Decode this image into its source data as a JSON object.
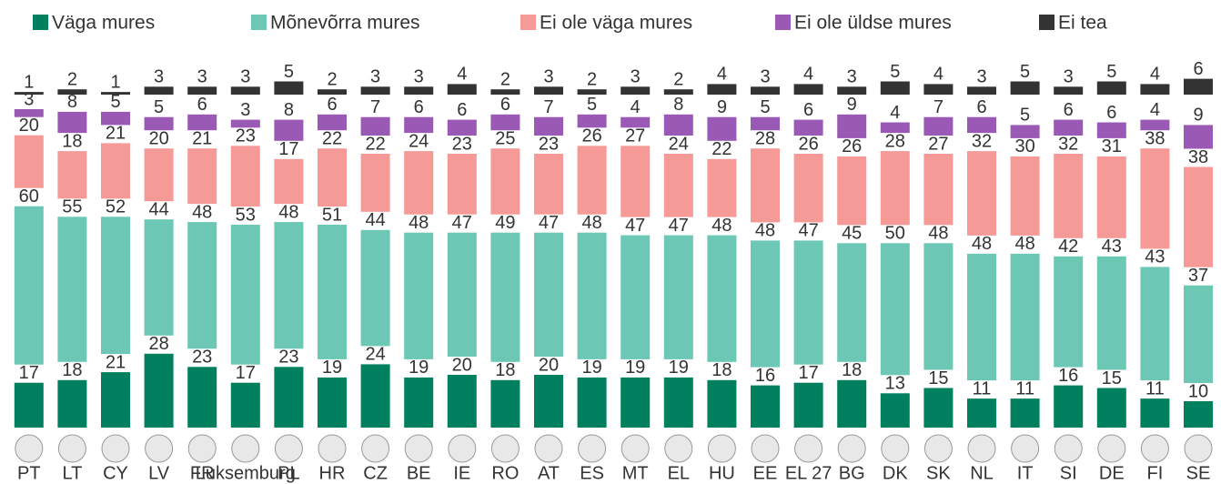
{
  "chart_data": {
    "type": "stacked_bar",
    "categories": [
      "PT",
      "LT",
      "CY",
      "LV",
      "FR",
      "Luksemburg",
      "PL",
      "HR",
      "CZ",
      "BE",
      "IE",
      "RO",
      "AT",
      "ES",
      "MT",
      "EL",
      "HU",
      "EE",
      "EL 27",
      "BG",
      "DK",
      "SK",
      "NL",
      "IT",
      "SI",
      "DE",
      "FI",
      "SE"
    ],
    "series": [
      {
        "name": "Väga mures",
        "color": "#00805f",
        "values": [
          17,
          18,
          21,
          28,
          23,
          17,
          23,
          19,
          24,
          19,
          20,
          18,
          20,
          19,
          19,
          19,
          18,
          16,
          17,
          18,
          13,
          15,
          11,
          11,
          16,
          15,
          11,
          10
        ]
      },
      {
        "name": "Mõnevõrra mures",
        "color": "#6cc8b5",
        "values": [
          60,
          55,
          52,
          44,
          48,
          53,
          48,
          51,
          44,
          48,
          47,
          49,
          47,
          48,
          47,
          47,
          48,
          48,
          47,
          45,
          50,
          48,
          48,
          48,
          42,
          43,
          43,
          37
        ]
      },
      {
        "name": "Ei ole väga mures",
        "color": "#f59a97",
        "values": [
          20,
          18,
          21,
          20,
          21,
          23,
          17,
          22,
          22,
          24,
          23,
          25,
          23,
          26,
          27,
          24,
          22,
          28,
          26,
          26,
          28,
          27,
          32,
          30,
          32,
          31,
          38,
          38
        ]
      },
      {
        "name": "Ei ole üldse mures",
        "color": "#9b59b6",
        "values": [
          3,
          8,
          5,
          5,
          6,
          3,
          8,
          6,
          7,
          6,
          6,
          6,
          7,
          5,
          4,
          8,
          9,
          5,
          6,
          9,
          4,
          7,
          6,
          5,
          6,
          6,
          4,
          9
        ]
      },
      {
        "name": "Ei tea",
        "color": "#333333",
        "values": [
          1,
          2,
          1,
          3,
          3,
          3,
          5,
          2,
          3,
          3,
          4,
          2,
          3,
          2,
          3,
          2,
          4,
          3,
          4,
          3,
          5,
          4,
          3,
          5,
          3,
          5,
          4,
          6
        ]
      }
    ]
  }
}
